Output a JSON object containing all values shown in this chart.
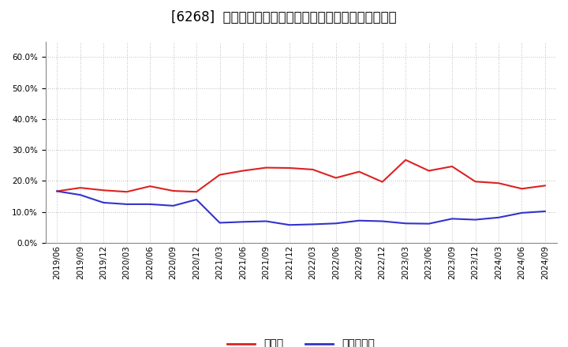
{
  "title": "[6268]  現預金、有利子負債の総資産に対する比率の推移",
  "x_labels": [
    "2019/06",
    "2019/09",
    "2019/12",
    "2020/03",
    "2020/06",
    "2020/09",
    "2020/12",
    "2021/03",
    "2021/06",
    "2021/09",
    "2021/12",
    "2022/03",
    "2022/06",
    "2022/09",
    "2022/12",
    "2023/03",
    "2023/06",
    "2023/09",
    "2023/12",
    "2024/03",
    "2024/06",
    "2024/09"
  ],
  "cash_ratio": [
    0.167,
    0.178,
    0.17,
    0.165,
    0.183,
    0.168,
    0.165,
    0.22,
    0.233,
    0.243,
    0.242,
    0.237,
    0.21,
    0.23,
    0.197,
    0.268,
    0.233,
    0.247,
    0.198,
    0.193,
    0.175,
    0.185
  ],
  "debt_ratio": [
    0.167,
    0.155,
    0.13,
    0.125,
    0.125,
    0.12,
    0.14,
    0.065,
    0.068,
    0.07,
    0.058,
    0.06,
    0.063,
    0.072,
    0.07,
    0.063,
    0.062,
    0.078,
    0.075,
    0.082,
    0.097,
    0.102
  ],
  "cash_color": "#dd2222",
  "debt_color": "#3333cc",
  "background_color": "#ffffff",
  "plot_bg_color": "#ffffff",
  "grid_color": "#aaaaaa",
  "ylim": [
    0.0,
    0.65
  ],
  "yticks": [
    0.0,
    0.1,
    0.2,
    0.3,
    0.4,
    0.5,
    0.6
  ],
  "legend_cash": "現預金",
  "legend_debt": "有利子負債",
  "title_fontsize": 12,
  "tick_fontsize": 7.5,
  "legend_fontsize": 10
}
